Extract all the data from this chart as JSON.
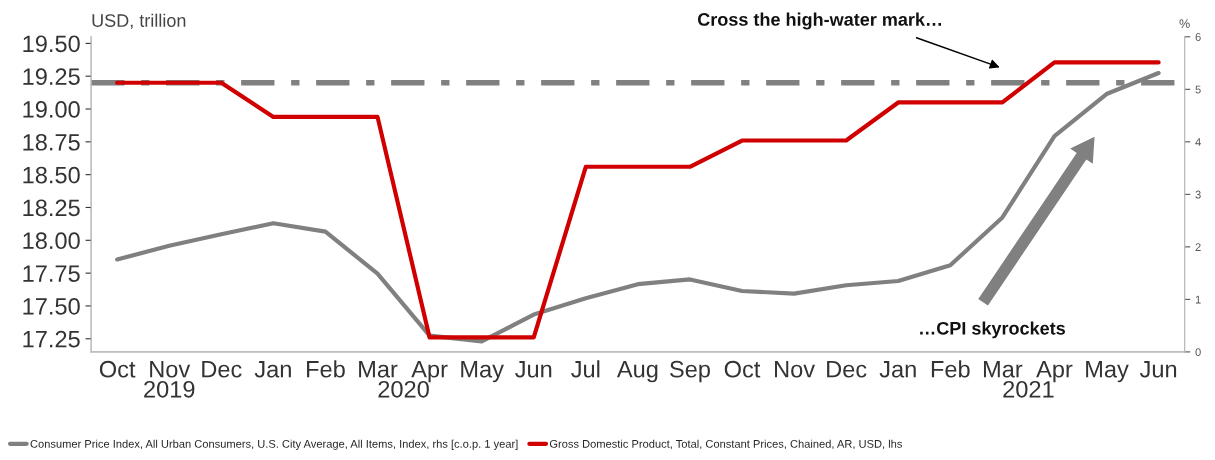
{
  "chart_data": {
    "type": "line",
    "categories": [
      "Oct",
      "Nov",
      "Dec",
      "Jan",
      "Feb",
      "Mar",
      "Apr",
      "May",
      "Jun",
      "Jul",
      "Aug",
      "Sep",
      "Oct",
      "Nov",
      "Dec",
      "Jan",
      "Feb",
      "Mar",
      "Apr",
      "May",
      "Jun"
    ],
    "series": [
      {
        "name": "Consumer Price Index, All Urban Consumers, U.S. City Average, All Items, Index, rhs [c.o.p. 1 year]",
        "color": "#808080",
        "axis": "y2",
        "values": [
          1.76,
          2.02,
          2.24,
          2.45,
          2.29,
          1.49,
          0.31,
          0.2,
          0.71,
          1.02,
          1.29,
          1.38,
          1.16,
          1.11,
          1.27,
          1.35,
          1.65,
          2.56,
          4.11,
          4.91,
          5.31
        ]
      },
      {
        "name": "Gross Domestic Product, Total, Constant Prices, Chained, AR, USD, lhs",
        "color": "#d00000",
        "values": [
          19.2,
          19.2,
          19.2,
          18.94,
          18.94,
          18.94,
          17.26,
          17.26,
          17.26,
          18.56,
          18.56,
          18.56,
          18.76,
          18.76,
          18.76,
          19.05,
          19.05,
          19.05,
          19.355,
          19.355,
          19.355
        ]
      }
    ],
    "ylabel": "USD, trillion",
    "y2label": "%",
    "ylim": [
      17.15,
      19.55
    ],
    "yticks": [
      {
        "value": 17.25,
        "label": "17.25"
      },
      {
        "value": 17.5,
        "label": "17.50"
      },
      {
        "value": 17.75,
        "label": "17.75"
      },
      {
        "value": 18.0,
        "label": "18.00"
      },
      {
        "value": 18.25,
        "label": "18.25"
      },
      {
        "value": 18.5,
        "label": "18.50"
      },
      {
        "value": 18.75,
        "label": "18.75"
      },
      {
        "value": 19.0,
        "label": "19.00"
      },
      {
        "value": 19.25,
        "label": "19.25"
      },
      {
        "value": 19.5,
        "label": "19.50"
      }
    ],
    "y2lim": [
      0,
      6
    ],
    "y2ticks": [
      0,
      1,
      2,
      3,
      4,
      5,
      6
    ],
    "ref_lines": [
      {
        "axis": "y",
        "value": 19.2,
        "color": "#808080",
        "line_style": "dashdot"
      }
    ],
    "annotations": [
      "Cross the high-water mark…",
      "…CPI skyrockets",
      "2019",
      "2020",
      "2021"
    ],
    "grid": false,
    "legend": "bottom",
    "marker": "none",
    "line_style": "solid"
  }
}
